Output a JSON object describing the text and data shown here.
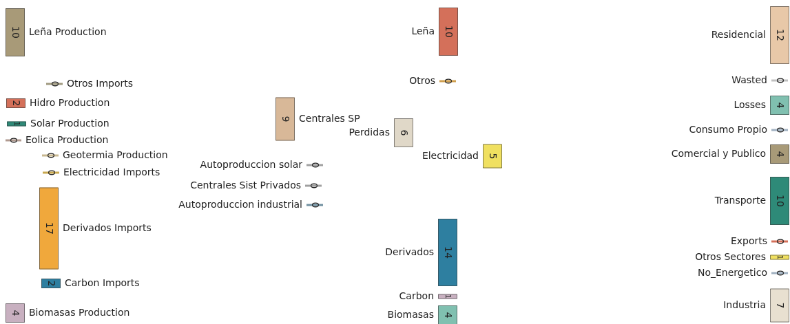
{
  "chart_data": {
    "type": "other",
    "data_labels": true,
    "categories": [
      "Leña Production",
      "Otros Imports",
      "Hidro Production",
      "Solar Production",
      "Eolica Production",
      "Geotermia Production",
      "Electricidad Imports",
      "Derivados Imports",
      "Carbon Imports",
      "Biomasas Production",
      "Autoproduccion solar",
      "Centrales Sist Privados",
      "Autoproduccion industrial",
      "Centrales SP",
      "Leña",
      "Otros",
      "Perdidas",
      "Electricidad",
      "Derivados",
      "Carbon",
      "Biomasas",
      "Residencial",
      "Wasted",
      "Losses",
      "Consumo Propio",
      "Comercial y Publico",
      "Transporte",
      "Exports",
      "Otros Sectores",
      "No_Energetico",
      "Industria"
    ],
    "values": [
      10,
      0,
      2,
      1,
      0,
      0,
      0,
      17,
      2,
      4,
      0,
      0,
      0,
      9,
      10,
      0,
      6,
      5,
      14,
      1,
      4,
      12,
      0,
      4,
      0,
      4,
      10,
      0,
      1,
      0,
      7
    ],
    "colors": [
      "#a89a78",
      "#a09a80",
      "#d4705a",
      "#2e8a78",
      "#b09a90",
      "#c8b890",
      "#c8a850",
      "#f0a83c",
      "#2e7fa0",
      "#c8b0c0",
      "#a0a0a0",
      "#a0a0a0",
      "#7090a0",
      "#d8b898",
      "#d4705a",
      "#d0a050",
      "#e0d8c8",
      "#f0e060",
      "#2e7fa0",
      "#c8b0c0",
      "#80c0b0",
      "#e8c8a8",
      "#c0c0c0",
      "#80c0b0",
      "#a0b0c0",
      "#a89a78",
      "#2e8a78",
      "#d4705a",
      "#f0e060",
      "#a0b0c0",
      "#e8e0d0"
    ]
  }
}
